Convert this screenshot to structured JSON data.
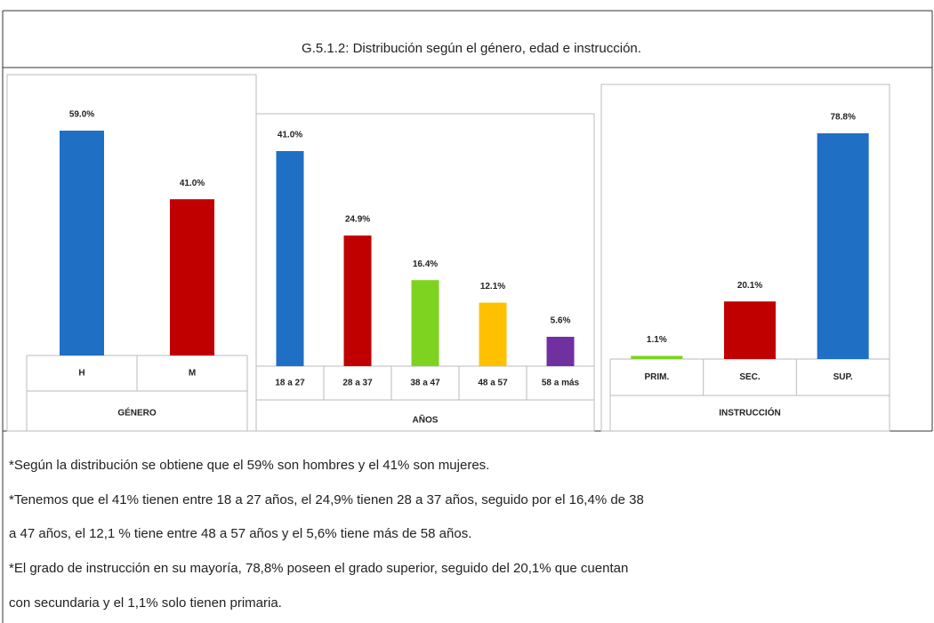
{
  "title": "G.5.1.2: Distribución según el género, edad e  instrucción.",
  "notes": [
    "*Según la distribución se obtiene que el 59% son hombres y el 41% son mujeres.",
    "*Tenemos que el 41% tienen entre 18 a 27 años, el 24,9% tienen 28 a 37 años, seguido por el 16,4% de 38",
    "a 47 años, el 12,1 % tiene entre 48 a 57 años y el 5,6% tiene más de 58 años.",
    "*El grado de instrucción en su mayoría, 78,8% poseen el grado superior, seguido del 20,1% que cuentan",
    "con secundaria y el 1,1% solo tienen primaria."
  ],
  "chart_data": [
    {
      "type": "bar",
      "xlabel": "GÉNERO",
      "categories": [
        "H",
        "M"
      ],
      "values": [
        59.0,
        41.0
      ],
      "value_labels": [
        "59.0%",
        "41.0%"
      ],
      "colors": [
        "#1f6fc5",
        "#c00000"
      ]
    },
    {
      "type": "bar",
      "xlabel": "AÑOS",
      "categories": [
        "18 a 27",
        "28 a 37",
        "38 a 47",
        "48 a 57",
        "58 a más"
      ],
      "values": [
        41.0,
        24.9,
        16.4,
        12.1,
        5.6
      ],
      "value_labels": [
        "41.0%",
        "24.9%",
        "16.4%",
        "12.1%",
        "5.6%"
      ],
      "colors": [
        "#1f6fc5",
        "#c00000",
        "#7ed321",
        "#ffc000",
        "#7030a0"
      ]
    },
    {
      "type": "bar",
      "xlabel": "INSTRUCCIÓN",
      "categories": [
        "PRIM.",
        "SEC.",
        "SUP."
      ],
      "values": [
        1.1,
        20.1,
        78.8
      ],
      "value_labels": [
        "1.1%",
        "20.1%",
        "78.8%"
      ],
      "colors": [
        "#7ed321",
        "#c00000",
        "#1f6fc5"
      ]
    }
  ]
}
